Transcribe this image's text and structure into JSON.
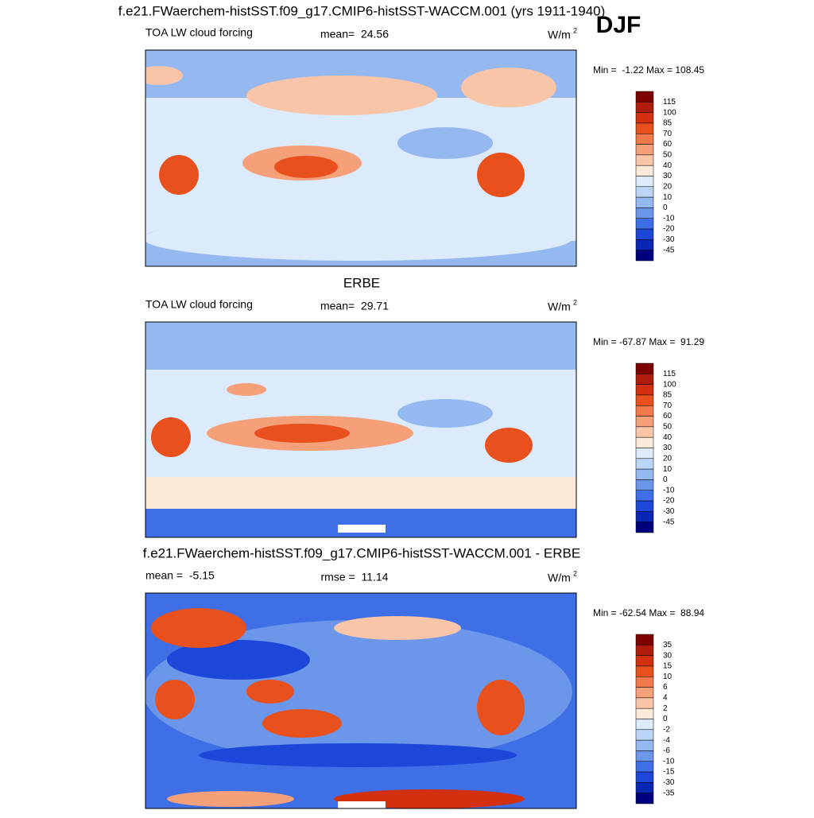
{
  "season": "DJF",
  "panels": [
    {
      "title": "f.e21.FWaerchem-histSST.f09_g17.CMIP6-histSST-WACCM.001 (yrs 1911-1940)",
      "left": "TOA LW cloud forcing",
      "center": "mean=  24.56",
      "units": {
        "base": "W/m",
        "sup": "2"
      },
      "minmax": "Min =  -1.22 Max = 108.45",
      "colorbar": {
        "labels": [
          115,
          100,
          85,
          70,
          60,
          50,
          40,
          30,
          20,
          10,
          0,
          -10,
          -20,
          -30,
          -45
        ],
        "colors": [
          "#7f0000",
          "#b01c0c",
          "#d2300f",
          "#e8501e",
          "#f27a4a",
          "#f6a07a",
          "#f9c5a8",
          "#fde9d8",
          "#dcebfb",
          "#bcd5f6",
          "#96b8f0",
          "#6b96ea",
          "#3f6fe6",
          "#1c47d8",
          "#0a26b4",
          "#00007e"
        ]
      }
    },
    {
      "title": "ERBE",
      "left": "TOA LW cloud forcing",
      "center": "mean=  29.71",
      "units": {
        "base": "W/m",
        "sup": "2"
      },
      "minmax": "Min = -67.87 Max =  91.29",
      "colorbar": {
        "labels": [
          115,
          100,
          85,
          70,
          60,
          50,
          40,
          30,
          20,
          10,
          0,
          -10,
          -20,
          -30,
          -45
        ],
        "colors": [
          "#7f0000",
          "#b01c0c",
          "#d2300f",
          "#e8501e",
          "#f27a4a",
          "#f6a07a",
          "#f9c5a8",
          "#fde9d8",
          "#dcebfb",
          "#bcd5f6",
          "#96b8f0",
          "#6b96ea",
          "#3f6fe6",
          "#1c47d8",
          "#0a26b4",
          "#00007e"
        ]
      }
    },
    {
      "title": "f.e21.FWaerchem-histSST.f09_g17.CMIP6-histSST-WACCM.001 - ERBE",
      "left": "mean =  -5.15",
      "center": "rmse =  11.14",
      "units": {
        "base": "W/m",
        "sup": "2"
      },
      "minmax": "Min = -62.54 Max =  88.94",
      "colorbar": {
        "labels": [
          35,
          30,
          15,
          10,
          6,
          4,
          2,
          0,
          -2,
          -4,
          -6,
          -10,
          -15,
          -30,
          -35
        ],
        "colors": [
          "#7f0000",
          "#b01c0c",
          "#d2300f",
          "#e8501e",
          "#f27a4a",
          "#f6a07a",
          "#f9c5a8",
          "#fde9d8",
          "#dcebfb",
          "#bcd5f6",
          "#96b8f0",
          "#6b96ea",
          "#3f6fe6",
          "#1c47d8",
          "#0a26b4",
          "#00007e"
        ]
      }
    }
  ]
}
